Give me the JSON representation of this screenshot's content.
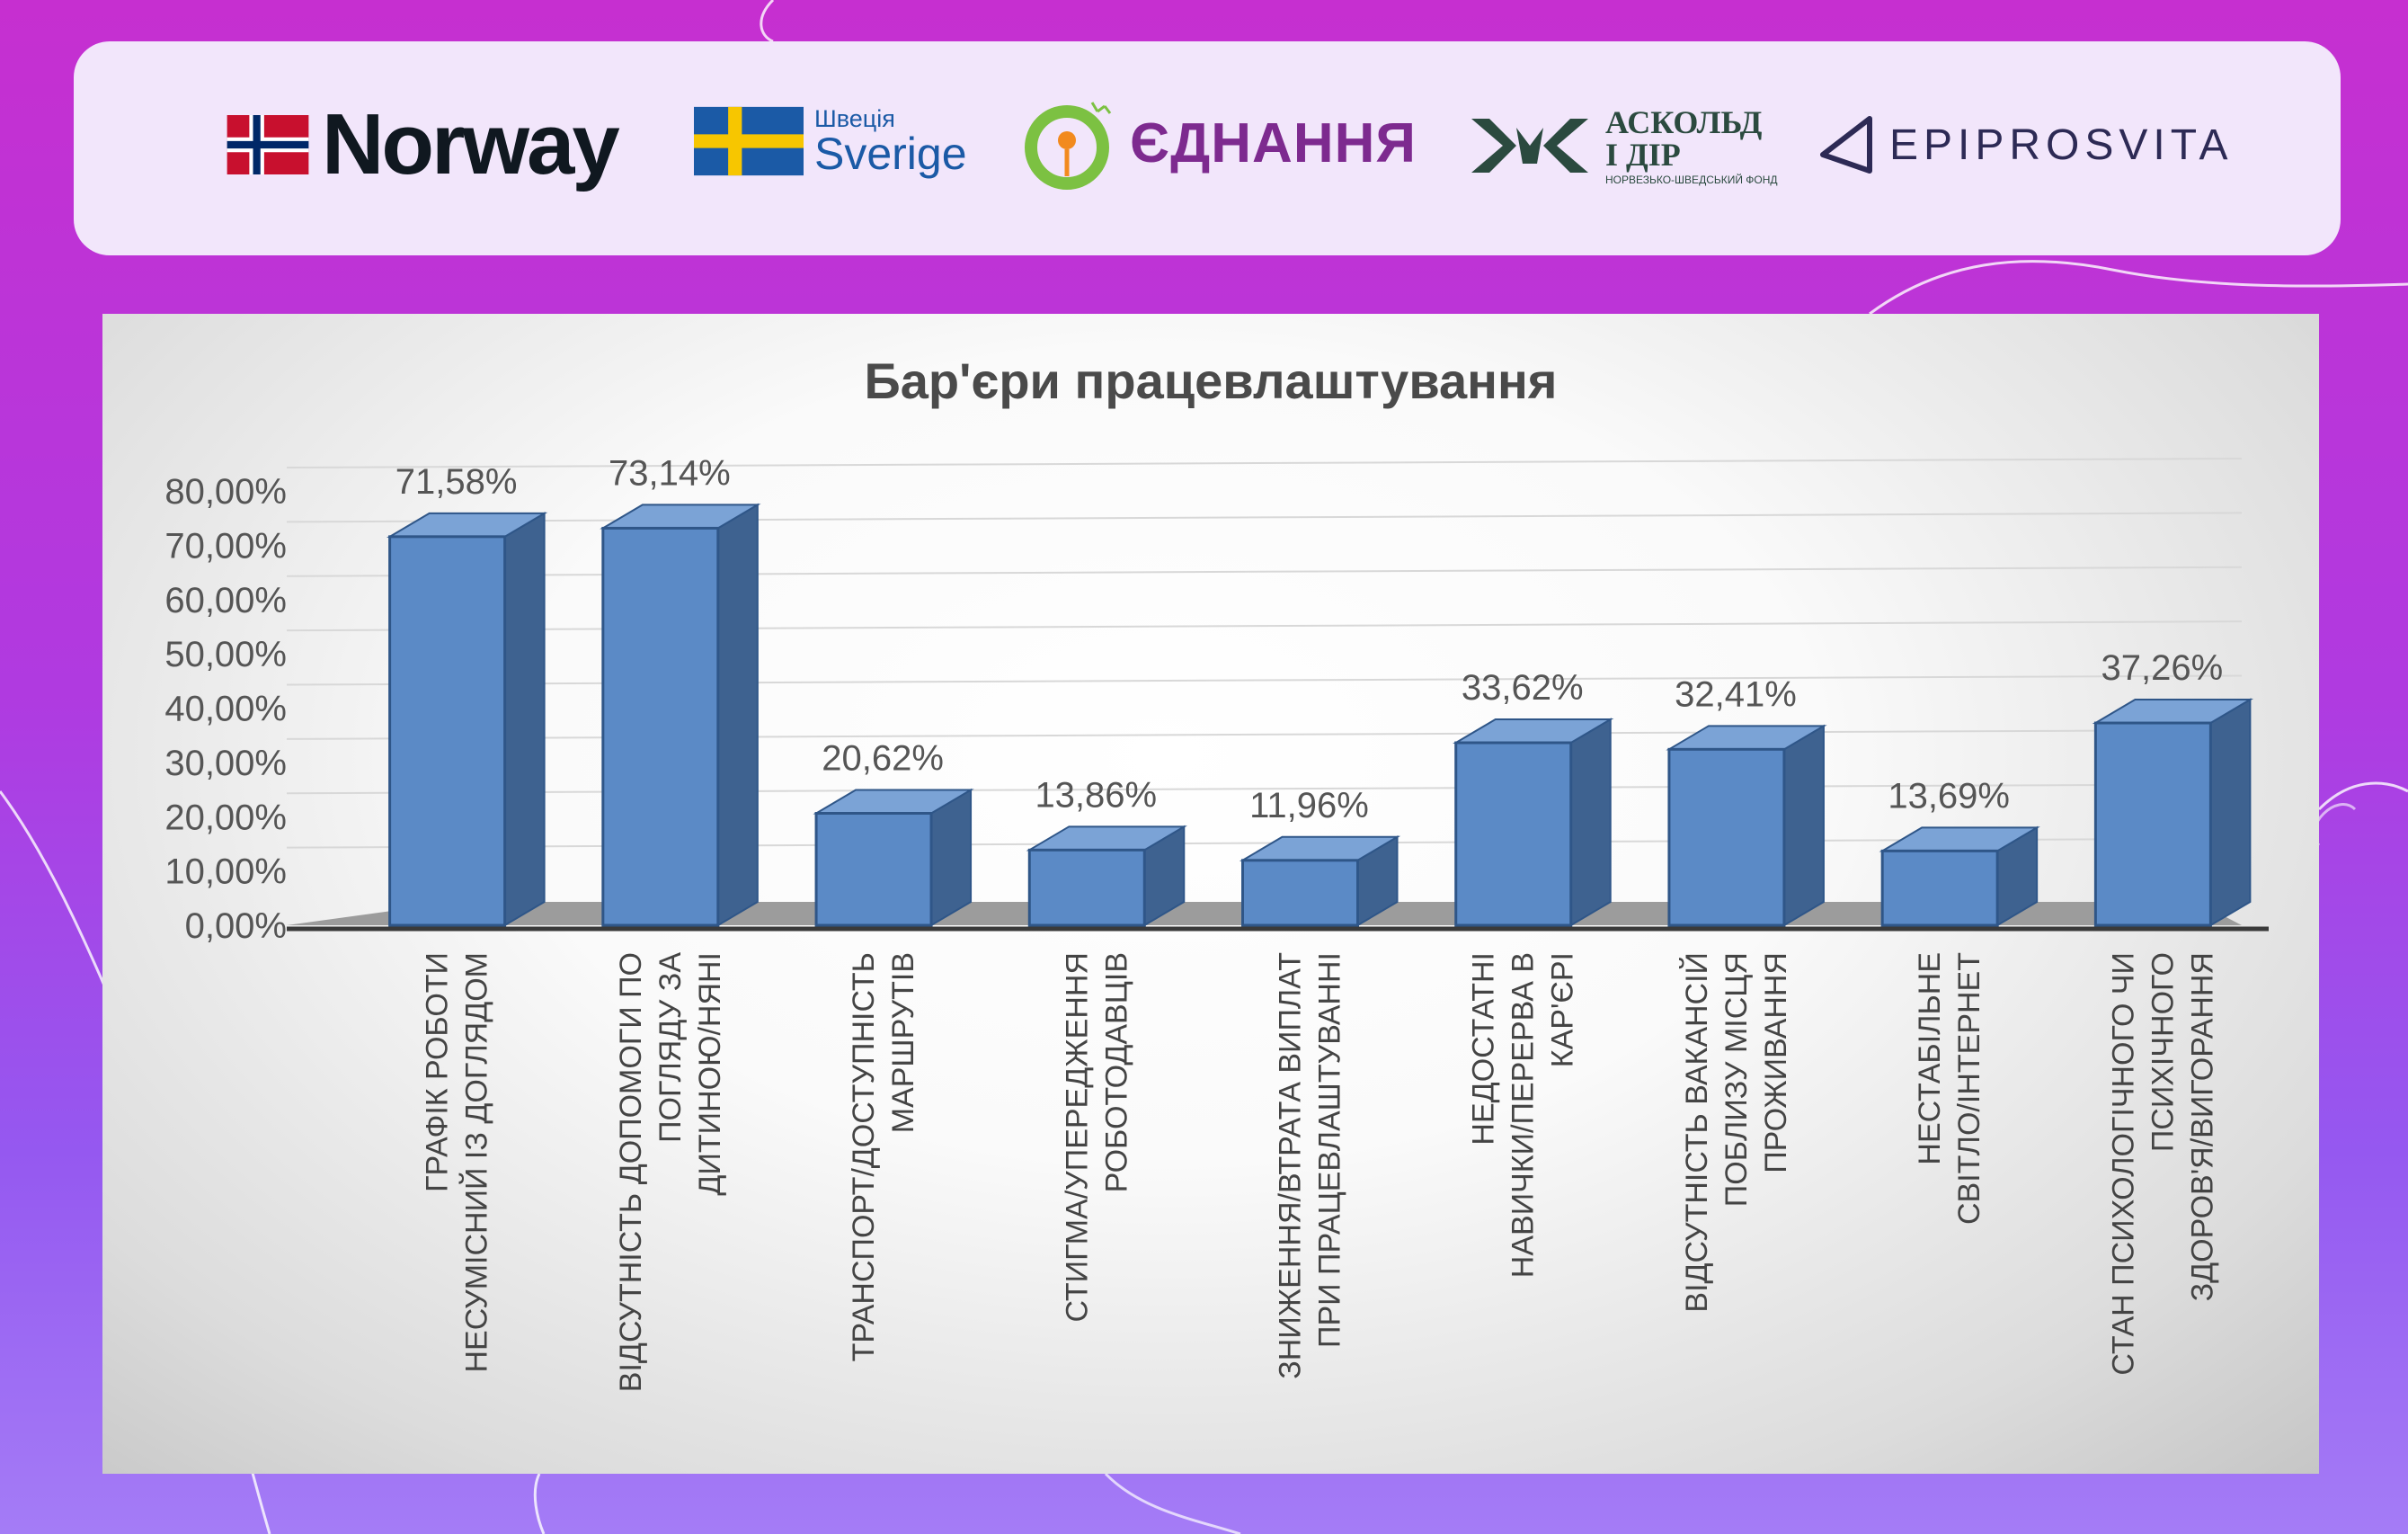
{
  "logos": {
    "norway": "Norway",
    "sweden_small": "Швеція",
    "sweden_big": "Sverige",
    "ednannya": "ЄДНАННЯ",
    "askold_line1": "АСКОЛЬД",
    "askold_line2": "І ДІР",
    "askold_sub": "НОРВЕЗЬКО-ШВЕДСЬКИЙ ФОНД",
    "epiprosvita": "EPIPROSVITA"
  },
  "colors": {
    "bar_front": "#5b8ac6",
    "bar_side": "#3e6290",
    "bar_top": "#7ba3d6",
    "accent_red": "#c8102e",
    "accent_blue": "#002868",
    "sweden_blue": "#1b5aa6",
    "sweden_yellow": "#f7c600",
    "ednannya_green": "#7cc142",
    "ednannya_orange": "#f28a1e"
  },
  "chart_data": {
    "type": "bar",
    "title": "Бар'єри працевлаштування",
    "ylim": [
      0,
      80
    ],
    "yticks": [
      "0,00%",
      "10,00%",
      "20,00%",
      "30,00%",
      "40,00%",
      "50,00%",
      "60,00%",
      "70,00%",
      "80,00%"
    ],
    "categories": [
      [
        "ГРАФІК РОБОТИ",
        "НЕСУМІСНИЙ ІЗ ДОГЛЯДОМ"
      ],
      [
        "ВІДСУТНІСТЬ ДОПОМОГИ ПО",
        "ПОГЛЯДУ ЗА",
        "ДИТИНОЮ/НЯНІ"
      ],
      [
        "ТРАНСПОРТ/ДОСТУПНІСТЬ",
        "МАРШРУТІВ"
      ],
      [
        "СТИГМА/УПЕРЕДЖЕННЯ",
        "РОБОТОДАВЦІВ"
      ],
      [
        "ЗНИЖЕННЯ/ВТРАТА ВИПЛАТ",
        "ПРИ ПРАЦЕВЛАШТУВАННІ"
      ],
      [
        "НЕДОСТАТНІ",
        "НАВИЧКИ/ПЕРЕРВА В",
        "КАР'ЄРІ"
      ],
      [
        "ВІДСУТНІСТЬ ВАКАНСІЙ",
        "ПОБЛИЗУ МІСЦЯ",
        "ПРОЖИВАННЯ"
      ],
      [
        "НЕСТАБІЛЬНЕ",
        "СВІТЛО/ІНТЕРНЕТ"
      ],
      [
        "СТАН ПСИХОЛОГІЧНОГО ЧИ",
        "ПСИХІЧНОГО",
        "ЗДОРОВ'Я/ВИГОРАННЯ"
      ]
    ],
    "values": [
      71.58,
      73.14,
      20.62,
      13.86,
      11.96,
      33.62,
      32.41,
      13.69,
      37.26
    ],
    "labels": [
      "71,58%",
      "73,14%",
      "20,62%",
      "13,86%",
      "11,96%",
      "33,62%",
      "32,41%",
      "13,69%",
      "37,26%"
    ]
  }
}
